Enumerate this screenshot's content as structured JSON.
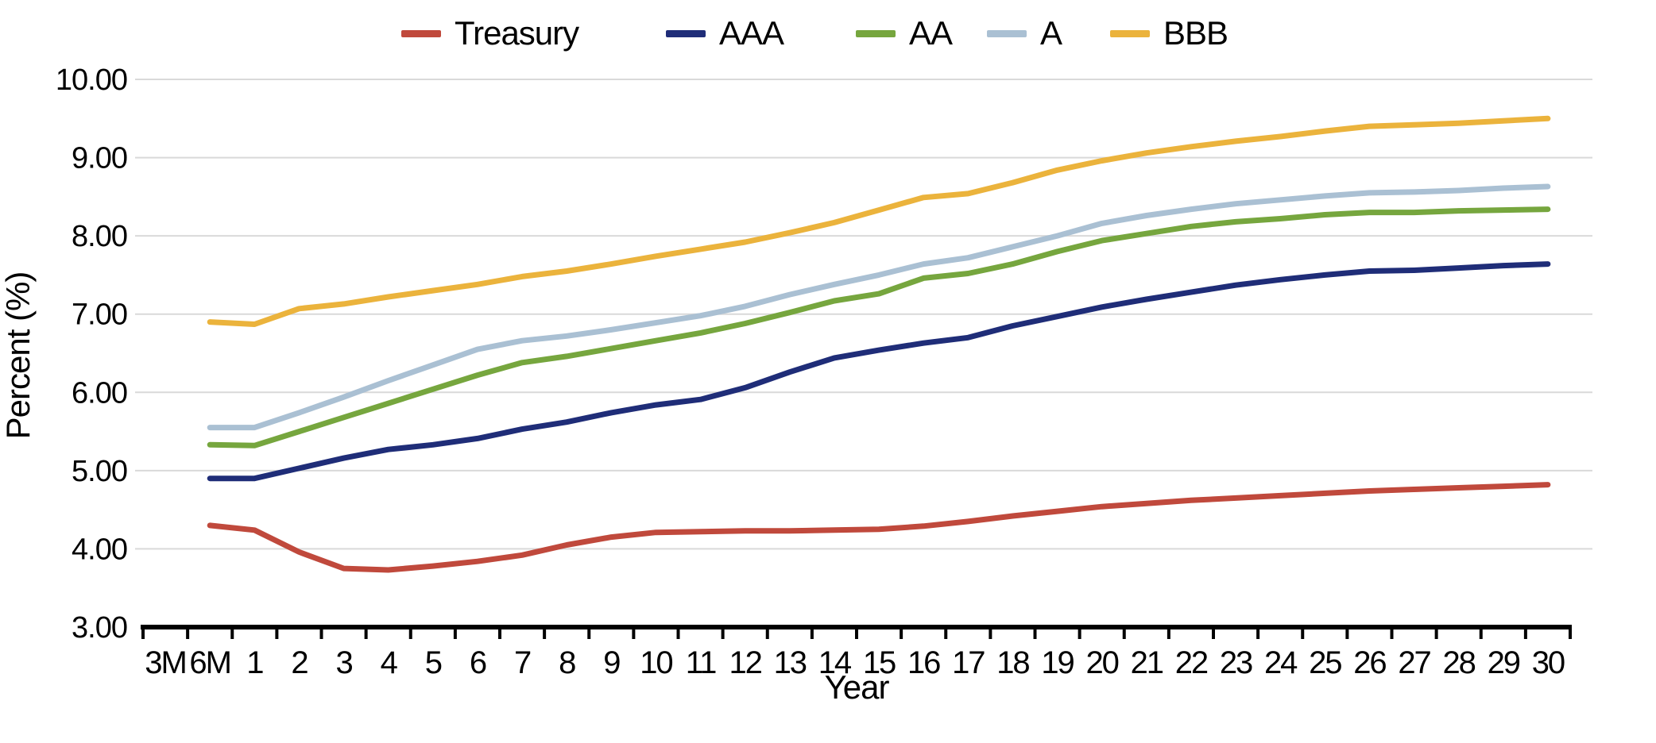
{
  "chart_data": {
    "type": "line",
    "title": "",
    "xlabel": "Year",
    "ylabel": "Percent (%)",
    "legend_position": "top",
    "grid": "horizontal",
    "ylim": [
      3,
      10
    ],
    "ytick_values": [
      3,
      4,
      5,
      6,
      7,
      8,
      9,
      10
    ],
    "ytick_labels": [
      "3.00",
      "4.00",
      "5.00",
      "6.00",
      "7.00",
      "8.00",
      "9.00",
      "10.00"
    ],
    "categories": [
      "3M",
      "6M",
      "1",
      "2",
      "3",
      "4",
      "5",
      "6",
      "7",
      "8",
      "9",
      "10",
      "11",
      "12",
      "13",
      "14",
      "15",
      "16",
      "17",
      "18",
      "19",
      "20",
      "21",
      "22",
      "23",
      "24",
      "25",
      "26",
      "27",
      "28",
      "29",
      "30"
    ],
    "colors": {
      "axis": "#000000",
      "grid": "#d9d9d9",
      "text": "#000000",
      "background": "#ffffff"
    },
    "series": [
      {
        "name": "Treasury",
        "color": "#c0493c",
        "values": [
          null,
          4.3,
          4.24,
          3.96,
          3.75,
          3.73,
          3.78,
          3.84,
          3.92,
          4.05,
          4.15,
          4.21,
          4.22,
          4.23,
          4.23,
          4.24,
          4.25,
          4.29,
          4.35,
          4.42,
          4.48,
          4.54,
          4.58,
          4.62,
          4.65,
          4.68,
          4.71,
          4.74,
          4.76,
          4.78,
          4.8,
          4.82
        ]
      },
      {
        "name": "AAA",
        "color": "#1f2d78",
        "values": [
          null,
          4.9,
          4.9,
          5.03,
          5.16,
          5.27,
          5.33,
          5.41,
          5.53,
          5.62,
          5.74,
          5.84,
          5.91,
          6.06,
          6.26,
          6.44,
          6.54,
          6.63,
          6.7,
          6.85,
          6.97,
          7.09,
          7.19,
          7.28,
          7.37,
          7.44,
          7.5,
          7.55,
          7.56,
          7.59,
          7.62,
          7.64
        ]
      },
      {
        "name": "AA",
        "color": "#76a63e",
        "values": [
          null,
          5.33,
          5.32,
          5.5,
          5.68,
          5.86,
          6.04,
          6.22,
          6.38,
          6.46,
          6.56,
          6.66,
          6.76,
          6.88,
          7.02,
          7.17,
          7.26,
          7.46,
          7.52,
          7.64,
          7.8,
          7.94,
          8.03,
          8.12,
          8.18,
          8.22,
          8.27,
          8.3,
          8.3,
          8.32,
          8.33,
          8.34
        ]
      },
      {
        "name": "A",
        "color": "#aac0d3",
        "values": [
          null,
          5.55,
          5.55,
          5.74,
          5.94,
          6.15,
          6.35,
          6.55,
          6.66,
          6.72,
          6.8,
          6.89,
          6.98,
          7.1,
          7.25,
          7.38,
          7.5,
          7.64,
          7.72,
          7.86,
          8.0,
          8.16,
          8.26,
          8.34,
          8.41,
          8.46,
          8.51,
          8.55,
          8.56,
          8.58,
          8.61,
          8.63
        ]
      },
      {
        "name": "BBB",
        "color": "#ebb33c",
        "values": [
          null,
          6.9,
          6.87,
          7.07,
          7.13,
          7.22,
          7.3,
          7.38,
          7.48,
          7.55,
          7.64,
          7.74,
          7.83,
          7.92,
          8.04,
          8.17,
          8.33,
          8.49,
          8.54,
          8.68,
          8.84,
          8.96,
          9.06,
          9.14,
          9.21,
          9.27,
          9.34,
          9.4,
          9.42,
          9.44,
          9.47,
          9.5
        ]
      }
    ]
  }
}
